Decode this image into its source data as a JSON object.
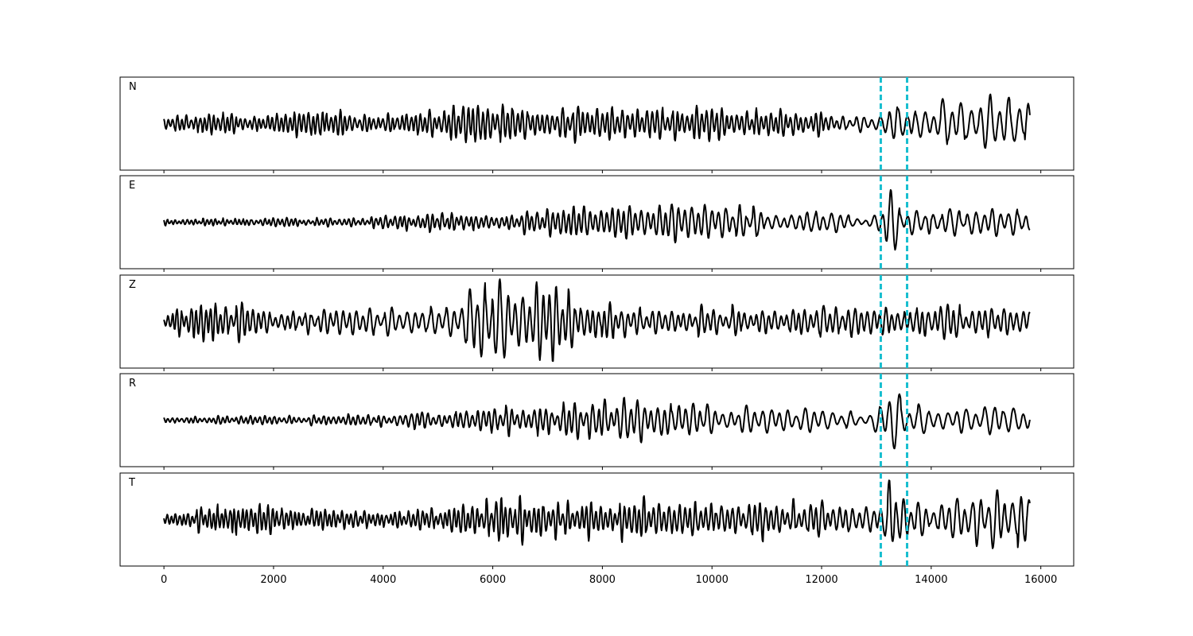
{
  "chart_data": {
    "type": "line",
    "xlim": [
      -800,
      16600
    ],
    "x_ticks": [
      "0",
      "2000",
      "4000",
      "6000",
      "8000",
      "10000",
      "12000",
      "14000",
      "16000"
    ],
    "x_tick_values": [
      0,
      2000,
      4000,
      6000,
      8000,
      10000,
      12000,
      14000,
      16000
    ],
    "n_samples": 15800,
    "pick_lines": [
      13080,
      13560
    ],
    "pick_color": "#17becf",
    "trace_color": "#000000",
    "grid": false,
    "panels": [
      {
        "label": "N",
        "ylim": [
          -1,
          1
        ],
        "seed": 11,
        "envelope": [
          [
            0,
            0.12
          ],
          [
            1000,
            0.3
          ],
          [
            2000,
            0.18
          ],
          [
            2800,
            0.35
          ],
          [
            4000,
            0.18
          ],
          [
            6000,
            0.45
          ],
          [
            7000,
            0.3
          ],
          [
            8000,
            0.45
          ],
          [
            9000,
            0.35
          ],
          [
            11000,
            0.33
          ],
          [
            12900,
            0.18
          ],
          [
            13100,
            0.2
          ],
          [
            13200,
            0.7
          ],
          [
            13350,
            0.85
          ],
          [
            13500,
            0.45
          ],
          [
            14000,
            0.45
          ],
          [
            15000,
            0.55
          ],
          [
            15700,
            0.85
          ],
          [
            15800,
            0.5
          ]
        ],
        "period": [
          [
            0,
            80
          ],
          [
            6000,
            90
          ],
          [
            12000,
            90
          ],
          [
            13000,
            160
          ],
          [
            15800,
            180
          ]
        ]
      },
      {
        "label": "E",
        "ylim": [
          -1,
          1
        ],
        "seed": 23,
        "envelope": [
          [
            0,
            0.08
          ],
          [
            3500,
            0.1
          ],
          [
            4000,
            0.18
          ],
          [
            6000,
            0.2
          ],
          [
            8500,
            0.4
          ],
          [
            9400,
            0.45
          ],
          [
            12000,
            0.25
          ],
          [
            12900,
            0.12
          ],
          [
            13100,
            0.3
          ],
          [
            13250,
            0.85
          ],
          [
            13450,
            0.4
          ],
          [
            14000,
            0.3
          ],
          [
            15800,
            0.25
          ]
        ],
        "period": [
          [
            0,
            70
          ],
          [
            8000,
            100
          ],
          [
            13000,
            160
          ],
          [
            15800,
            150
          ]
        ]
      },
      {
        "label": "Z",
        "ylim": [
          -1,
          1
        ],
        "seed": 37,
        "envelope": [
          [
            0,
            0.22
          ],
          [
            700,
            0.45
          ],
          [
            1500,
            0.4
          ],
          [
            2000,
            0.25
          ],
          [
            5300,
            0.3
          ],
          [
            5700,
            0.95
          ],
          [
            6500,
            0.8
          ],
          [
            7200,
            0.75
          ],
          [
            8000,
            0.4
          ],
          [
            9000,
            0.3
          ],
          [
            12000,
            0.35
          ],
          [
            13300,
            0.3
          ],
          [
            14000,
            0.35
          ],
          [
            15800,
            0.45
          ]
        ],
        "period": [
          [
            0,
            80
          ],
          [
            5500,
            150
          ],
          [
            7500,
            110
          ],
          [
            13000,
            110
          ],
          [
            15800,
            120
          ]
        ]
      },
      {
        "label": "R",
        "ylim": [
          -1,
          1
        ],
        "seed": 53,
        "envelope": [
          [
            0,
            0.08
          ],
          [
            2000,
            0.1
          ],
          [
            4000,
            0.14
          ],
          [
            6000,
            0.3
          ],
          [
            8000,
            0.4
          ],
          [
            8800,
            0.5
          ],
          [
            10000,
            0.3
          ],
          [
            12000,
            0.25
          ],
          [
            12900,
            0.12
          ],
          [
            13150,
            0.65
          ],
          [
            13300,
            0.85
          ],
          [
            13600,
            0.55
          ],
          [
            14000,
            0.28
          ],
          [
            15800,
            0.35
          ]
        ],
        "period": [
          [
            0,
            80
          ],
          [
            8000,
            110
          ],
          [
            13000,
            180
          ],
          [
            15800,
            170
          ]
        ]
      },
      {
        "label": "T",
        "ylim": [
          -1,
          1
        ],
        "seed": 71,
        "envelope": [
          [
            0,
            0.1
          ],
          [
            800,
            0.3
          ],
          [
            1300,
            0.4
          ],
          [
            2200,
            0.25
          ],
          [
            4000,
            0.18
          ],
          [
            5500,
            0.3
          ],
          [
            6200,
            0.55
          ],
          [
            7000,
            0.4
          ],
          [
            8000,
            0.4
          ],
          [
            9000,
            0.45
          ],
          [
            12000,
            0.4
          ],
          [
            12900,
            0.25
          ],
          [
            13250,
            0.9
          ],
          [
            13400,
            0.5
          ],
          [
            14000,
            0.4
          ],
          [
            15000,
            0.55
          ],
          [
            15800,
            0.8
          ]
        ],
        "period": [
          [
            0,
            75
          ],
          [
            6000,
            85
          ],
          [
            12000,
            100
          ],
          [
            13000,
            140
          ],
          [
            15800,
            150
          ]
        ]
      }
    ]
  }
}
